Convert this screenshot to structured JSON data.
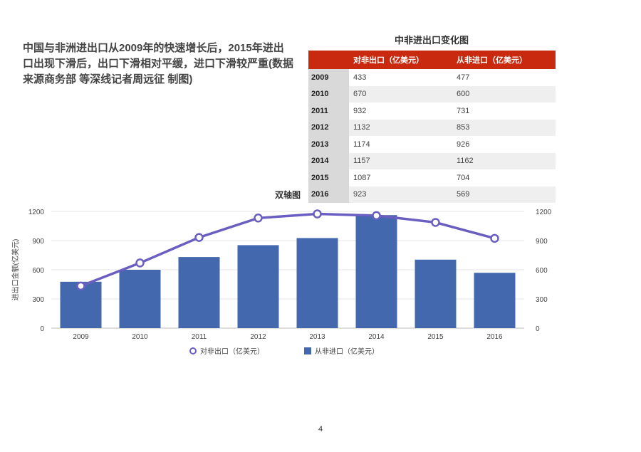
{
  "caption": "中国与非洲进出口从2009年的快速增长后，2015年进出口出现下滑后，出口下滑相对平缓，进口下滑较严重(数据来源商务部 等深线记者周远征 制图)",
  "table": {
    "title": "中非进出口变化图",
    "headers": [
      "",
      "对非出口（亿美元）",
      "从非进口（亿美元）"
    ],
    "rows": [
      [
        "2009",
        "433",
        "477"
      ],
      [
        "2010",
        "670",
        "600"
      ],
      [
        "2011",
        "932",
        "731"
      ],
      [
        "2012",
        "1132",
        "853"
      ],
      [
        "2013",
        "1174",
        "926"
      ],
      [
        "2014",
        "1157",
        "1162"
      ],
      [
        "2015",
        "1087",
        "704"
      ],
      [
        "2016",
        "923",
        "569"
      ]
    ]
  },
  "page_number": "4",
  "chart_data": {
    "type": "bar+line",
    "title": "双轴图",
    "ylabel": "进出口金额(亿美元)",
    "ylim": [
      0,
      1200
    ],
    "yticks": [
      "0",
      "300",
      "600",
      "900",
      "1200"
    ],
    "categories": [
      "2009",
      "2010",
      "2011",
      "2012",
      "2013",
      "2014",
      "2015",
      "2016"
    ],
    "series": [
      {
        "name": "对非出口（亿美元）",
        "kind": "line",
        "color": "#6a5fc1",
        "values": [
          433,
          670,
          932,
          1132,
          1174,
          1157,
          1087,
          923
        ]
      },
      {
        "name": "从非进口（亿美元）",
        "kind": "bar",
        "color": "#4468ad",
        "values": [
          477,
          600,
          731,
          853,
          926,
          1162,
          704,
          569
        ]
      }
    ],
    "legend": "bottom",
    "grid": true
  }
}
